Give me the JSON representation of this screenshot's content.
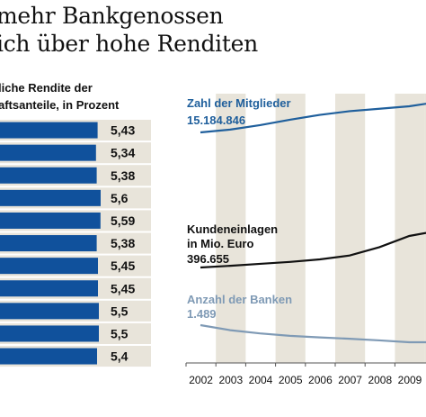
{
  "headline": {
    "line1": "mehr Bankgenossen",
    "line2": "ich über hohe Renditen"
  },
  "chart_data": [
    {
      "type": "bar",
      "orientation": "horizontal",
      "title_lines": [
        "liche Rendite der",
        "aftsanteile, in Prozent"
      ],
      "values": [
        5.43,
        5.34,
        5.38,
        5.6,
        5.59,
        5.38,
        5.45,
        5.45,
        5.5,
        5.5,
        5.4
      ],
      "value_labels": [
        "5,43",
        "5,34",
        "5,38",
        "5,6",
        "5,59",
        "5,38",
        "5,45",
        "5,45",
        "5,5",
        "5,5",
        "5,4"
      ],
      "bar_color": "#10519c",
      "row_band_color": "#e8e4da"
    },
    {
      "type": "line",
      "x": [
        2002,
        2003,
        2004,
        2005,
        2006,
        2007,
        2008,
        2009
      ],
      "x_tick_labels": [
        "2002",
        "2003",
        "2004",
        "2005",
        "2006",
        "2007",
        "2008",
        "2009"
      ],
      "band_color": "#e8e4da",
      "series": [
        {
          "name": "Zahl der Mitglieder",
          "start_label": "15.184.846",
          "color": "#1f5f9c",
          "values": [
            15184846,
            15300000,
            15480000,
            15700000,
            15900000,
            16050000,
            16150000,
            16250000
          ]
        },
        {
          "name_lines": [
            "Kundeneinlagen",
            "in Mio. Euro"
          ],
          "start_label": "396.655",
          "color": "#111111",
          "values": [
            396655,
            402000,
            408000,
            414000,
            422000,
            434000,
            460000,
            495000
          ]
        },
        {
          "name": "Anzahl der Banken",
          "start_label": "1.489",
          "color": "#7f9ab5",
          "values": [
            1489,
            1395,
            1335,
            1290,
            1260,
            1235,
            1205,
            1170
          ]
        }
      ]
    }
  ]
}
